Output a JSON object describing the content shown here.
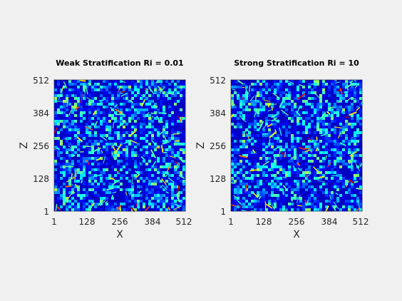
{
  "figure": {
    "background": "#f0f0f0"
  },
  "chart_data": [
    {
      "type": "heatmap",
      "title": "Weak Stratification Ri = 0.01",
      "xlabel": "X",
      "ylabel": "Z",
      "xlim": [
        1,
        512
      ],
      "ylim": [
        1,
        512
      ],
      "xticks": [
        1,
        128,
        256,
        384,
        512
      ],
      "yticks": [
        1,
        128,
        256,
        384,
        512
      ],
      "xtick_labels": [
        "1",
        "128",
        "256",
        "384",
        "512"
      ],
      "ytick_labels": [
        "1",
        "128",
        "256",
        "384",
        "512"
      ],
      "colormap": "jet",
      "seed": 7
    },
    {
      "type": "heatmap",
      "title": "Strong Stratification Ri = 10",
      "xlabel": "X",
      "ylabel": "Z",
      "xlim": [
        1,
        512
      ],
      "ylim": [
        1,
        512
      ],
      "xticks": [
        1,
        128,
        256,
        384,
        512
      ],
      "yticks": [
        1,
        128,
        256,
        384,
        512
      ],
      "xtick_labels": [
        "1",
        "128",
        "256",
        "384",
        "512"
      ],
      "ytick_labels": [
        "1",
        "128",
        "256",
        "384",
        "512"
      ],
      "colormap": "jet",
      "seed": 23
    }
  ]
}
